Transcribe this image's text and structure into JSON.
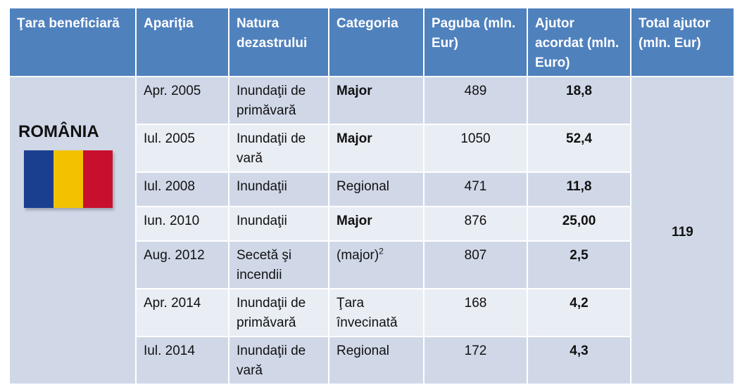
{
  "colors": {
    "header_bg": "#4f81bd",
    "row_dark": "#d0d8e8",
    "row_light": "#e9edf4"
  },
  "headers": [
    "Ţara beneficiară",
    "Apariţia",
    "Natura dezastrului",
    "Categoria",
    "Paguba (mln. Eur)",
    "Ajutor acordat (mln. Euro)",
    "Total ajutor (mln. Eur)"
  ],
  "country": {
    "name": "ROMÂNIA",
    "flag_colors": [
      "#1a3f8f",
      "#f2c200",
      "#c8102e"
    ]
  },
  "total": "119",
  "rows": [
    {
      "date": "Apr. 2005",
      "nature": "Inundaţii de primăvară",
      "category": "Major",
      "category_bold": true,
      "damage": "489",
      "aid": "18,8"
    },
    {
      "date": "Iul. 2005",
      "nature": "Inundaţii de vară",
      "category": "Major",
      "category_bold": true,
      "damage": "1050",
      "aid": "52,4"
    },
    {
      "date": "Iul. 2008",
      "nature": "Inundaţii",
      "category": "Regional",
      "category_bold": false,
      "damage": "471",
      "aid": "11,8"
    },
    {
      "date": "Iun. 2010",
      "nature": "Inundaţii",
      "category": "Major",
      "category_bold": true,
      "damage": "876",
      "aid": "25,00"
    },
    {
      "date": "Aug. 2012",
      "nature": "Secetă şi incendii",
      "category": "(major)",
      "category_sup": "2",
      "category_bold": false,
      "damage": "807",
      "aid": "2,5"
    },
    {
      "date": "Apr. 2014",
      "nature": "Inundaţii de primăvară",
      "category": "Ţara învecinată",
      "category_bold": false,
      "damage": "168",
      "aid": "4,2"
    },
    {
      "date": "Iul. 2014",
      "nature": "Inundaţii de vară",
      "category": "Regional",
      "category_bold": false,
      "damage": "172",
      "aid": "4,3"
    }
  ]
}
